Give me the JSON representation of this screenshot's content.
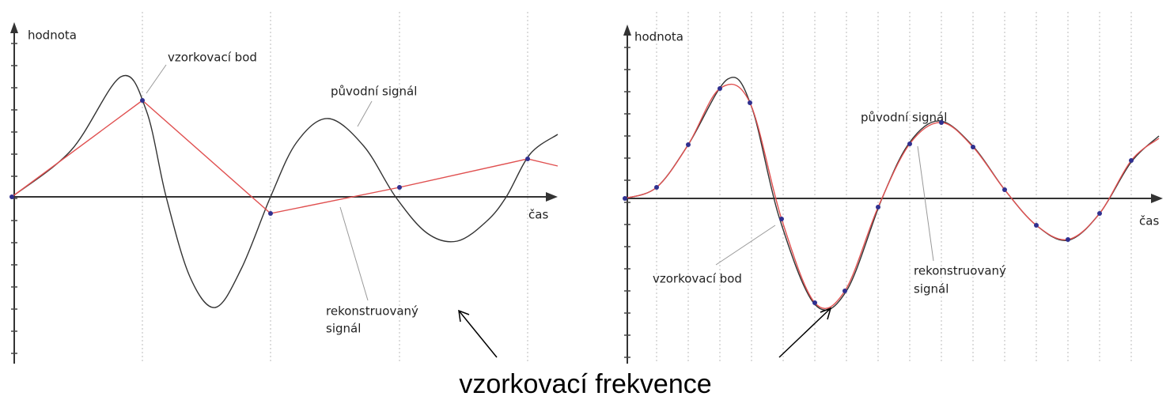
{
  "panels": [
    {
      "y_axis_label": "hodnota",
      "x_axis_label": "čas",
      "sample_point_label": "vzorkovací bod",
      "original_signal_label": "původní signál",
      "reconstructed_signal_label": [
        "rekonstruovaný",
        "signál"
      ]
    },
    {
      "y_axis_label": "hodnota",
      "x_axis_label": "čas",
      "sample_point_label": "vzorkovací bod",
      "original_signal_label": "původní signál",
      "reconstructed_signal_label": [
        "rekonstruovaný",
        "signál"
      ]
    }
  ],
  "caption": "vzorkovací frekvence"
}
